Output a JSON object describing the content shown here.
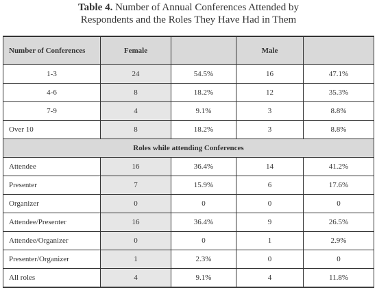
{
  "caption": {
    "label": "Table 4.",
    "line1": "Number of Annual Conferences Attended by",
    "line2": "Respondents and the Roles They Have Had in Them"
  },
  "header": {
    "col1": "Number of Conferences",
    "col2": "Female",
    "col3": "",
    "col4": "Male",
    "col5": ""
  },
  "conference_rows": [
    {
      "label": "1-3",
      "female_n": "24",
      "female_pct": "54.5%",
      "male_n": "16",
      "male_pct": "47.1%"
    },
    {
      "label": "4-6",
      "female_n": "8",
      "female_pct": "18.2%",
      "male_n": "12",
      "male_pct": "35.3%"
    },
    {
      "label": "7-9",
      "female_n": "4",
      "female_pct": "9.1%",
      "male_n": "3",
      "male_pct": "8.8%"
    },
    {
      "label": "Over 10",
      "female_n": "8",
      "female_pct": "18.2%",
      "male_n": "3",
      "male_pct": "8.8%"
    }
  ],
  "section_title": "Roles while attending Conferences",
  "role_rows": [
    {
      "label": "Attendee",
      "female_n": "16",
      "female_pct": "36.4%",
      "male_n": "14",
      "male_pct": "41.2%"
    },
    {
      "label": "Presenter",
      "female_n": "7",
      "female_pct": "15.9%",
      "male_n": "6",
      "male_pct": "17.6%"
    },
    {
      "label": "Organizer",
      "female_n": "0",
      "female_pct": "0",
      "male_n": "0",
      "male_pct": "0"
    },
    {
      "label": "Attendee/Presenter",
      "female_n": "16",
      "female_pct": "36.4%",
      "male_n": "9",
      "male_pct": "26.5%"
    },
    {
      "label": "Attendee/Organizer",
      "female_n": "0",
      "female_pct": "0",
      "male_n": "1",
      "male_pct": "2.9%"
    },
    {
      "label": "Presenter/Organizer",
      "female_n": "1",
      "female_pct": "2.3%",
      "male_n": "0",
      "male_pct": "0"
    },
    {
      "label": "All roles",
      "female_n": "4",
      "female_pct": "9.1%",
      "male_n": "4",
      "male_pct": "11.8%"
    }
  ]
}
